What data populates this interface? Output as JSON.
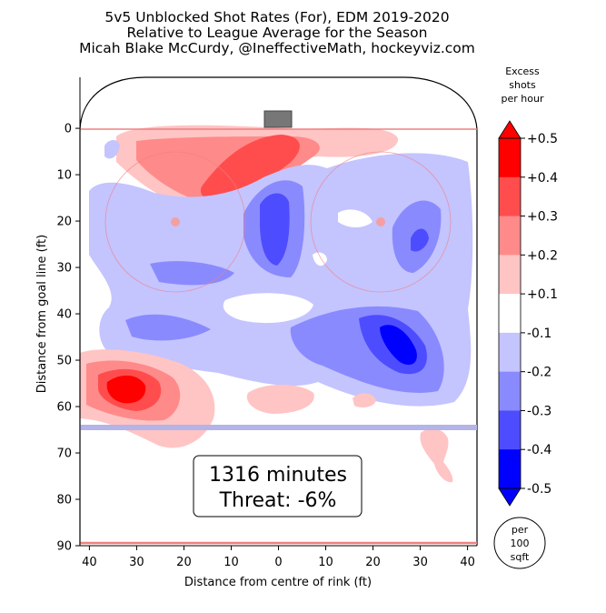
{
  "chart_data": {
    "type": "heatmap",
    "title": "5v5 Unblocked Shot Rates (For), EDM 2019-2020",
    "subtitle": "Relative to League Average for the Season",
    "credit": "Micah Blake McCurdy, @IneffectiveMath, hockeyviz.com",
    "xlabel": "Distance from centre of rink (ft)",
    "ylabel": "Distance from goal line (ft)",
    "x_ticks": [
      "40",
      "30",
      "20",
      "10",
      "0",
      "10",
      "20",
      "30",
      "40"
    ],
    "y_ticks": [
      "0",
      "10",
      "20",
      "30",
      "40",
      "50",
      "60",
      "70",
      "80",
      "90"
    ],
    "xlim": [
      -42,
      42
    ],
    "ylim": [
      -11,
      90
    ],
    "annotation": {
      "minutes": "1316 minutes",
      "threat": "Threat: -6%"
    },
    "colorbar": {
      "label": "Excess shots per hour",
      "label_lines": [
        "Excess",
        "shots",
        "per hour"
      ],
      "ticks": [
        "+0.5",
        "+0.4",
        "+0.3",
        "+0.2",
        "+0.1",
        "-0.1",
        "-0.2",
        "-0.3",
        "-0.4",
        "-0.5"
      ],
      "bands": [
        "#ff0000",
        "#ff4d4d",
        "#ff8a8a",
        "#ffc4c4",
        "#ffffff",
        "#c4c4ff",
        "#8a8aff",
        "#4d4dff",
        "#0000ff"
      ],
      "unit_lines": [
        "per",
        "100",
        "sqft"
      ]
    },
    "regions": [
      {
        "x": 2,
        "y": 4,
        "value": 0.2
      },
      {
        "x": 8,
        "y": 8,
        "value": 0.3
      },
      {
        "x": -22,
        "y": 12,
        "value": 0.2
      },
      {
        "x": -32,
        "y": 55,
        "value": 0.4
      },
      {
        "x": 0,
        "y": 58,
        "value": 0.15
      },
      {
        "x": 18,
        "y": 58,
        "value": 0.15
      },
      {
        "x": 34,
        "y": 72,
        "value": 0.15
      },
      {
        "x": 0,
        "y": 20,
        "value": -0.4
      },
      {
        "x": 29,
        "y": 46,
        "value": -0.5
      },
      {
        "x": 30,
        "y": 25,
        "value": -0.3
      },
      {
        "x": -22,
        "y": 30,
        "value": -0.2
      },
      {
        "x": -5,
        "y": 40,
        "value": -0.15
      },
      {
        "x": 22,
        "y": 15,
        "value": -0.15
      }
    ]
  }
}
